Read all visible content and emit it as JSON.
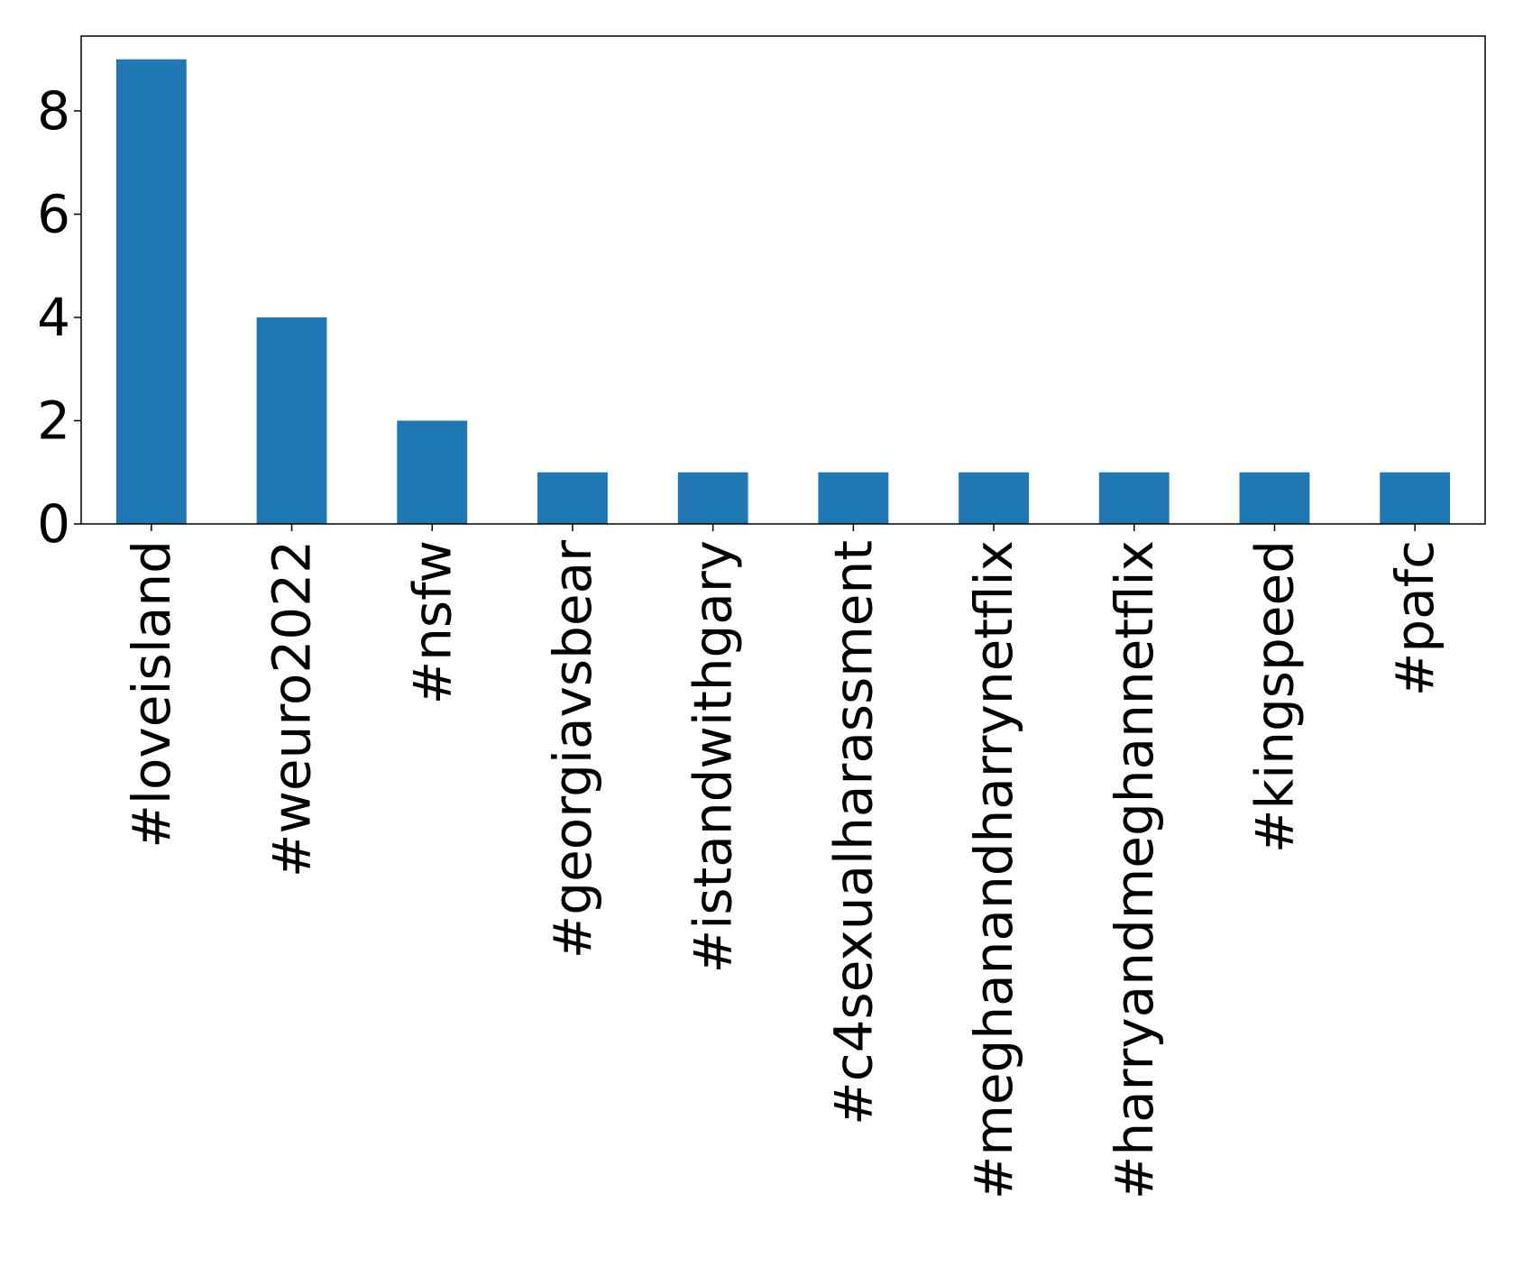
{
  "chart_data": {
    "type": "bar",
    "title": "",
    "xlabel": "",
    "ylabel": "",
    "categories": [
      "#loveisland",
      "#weuro2022",
      "#nsfw",
      "#georgiavsbear",
      "#istandwithgary",
      "#c4sexualharassment",
      "#meghanandharrynetflix",
      "#harryandmeghannetflix",
      "#kingspeed",
      "#pafc"
    ],
    "values": [
      9,
      4,
      2,
      1,
      1,
      1,
      1,
      1,
      1,
      1
    ],
    "ylim": [
      0,
      9.45
    ],
    "yticks": [
      "0",
      "2",
      "4",
      "6",
      "8"
    ],
    "grid": false,
    "legend": "none",
    "bar_color": "#1f77b4"
  }
}
